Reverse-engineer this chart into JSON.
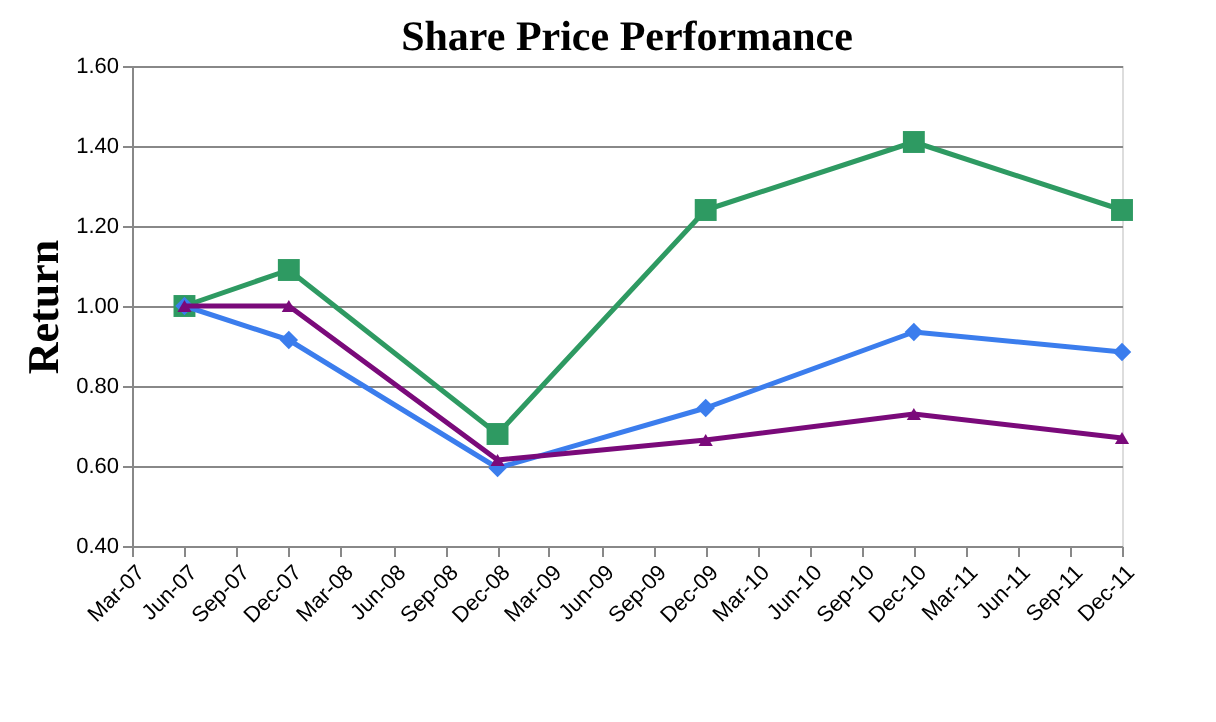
{
  "chart_data": {
    "type": "line",
    "title": "Share Price Performance",
    "ylabel": "Return",
    "x": [
      "2007-06",
      "2007-12",
      "2008-12",
      "2009-12",
      "2010-12",
      "2011-12"
    ],
    "series": [
      {
        "color": "#2e9a62",
        "marker": "square",
        "values": [
          1.0,
          1.09,
          0.68,
          1.24,
          1.41,
          1.24
        ]
      },
      {
        "color": "#3b7ded",
        "marker": "diamond",
        "values": [
          1.0,
          0.915,
          0.595,
          0.745,
          0.935,
          0.885
        ]
      },
      {
        "color": "#7a0a7a",
        "marker": "triangle",
        "values": [
          1.0,
          1.0,
          0.615,
          0.665,
          0.73,
          0.67
        ]
      }
    ],
    "xlim": [
      "2007-03",
      "2011-12"
    ],
    "xticks": [
      {
        "value": "2007-03",
        "label": "Mar-07"
      },
      {
        "value": "2007-06",
        "label": "Jun-07"
      },
      {
        "value": "2007-09",
        "label": "Sep-07"
      },
      {
        "value": "2007-12",
        "label": "Dec-07"
      },
      {
        "value": "2008-03",
        "label": "Mar-08"
      },
      {
        "value": "2008-06",
        "label": "Jun-08"
      },
      {
        "value": "2008-09",
        "label": "Sep-08"
      },
      {
        "value": "2008-12",
        "label": "Dec-08"
      },
      {
        "value": "2009-03",
        "label": "Mar-09"
      },
      {
        "value": "2009-06",
        "label": "Jun-09"
      },
      {
        "value": "2009-09",
        "label": "Sep-09"
      },
      {
        "value": "2009-12",
        "label": "Dec-09"
      },
      {
        "value": "2010-03",
        "label": "Mar-10"
      },
      {
        "value": "2010-06",
        "label": "Jun-10"
      },
      {
        "value": "2010-09",
        "label": "Sep-10"
      },
      {
        "value": "2010-12",
        "label": "Dec-10"
      },
      {
        "value": "2011-03",
        "label": "Mar-11"
      },
      {
        "value": "2011-06",
        "label": "Jun-11"
      },
      {
        "value": "2011-09",
        "label": "Sep-11"
      },
      {
        "value": "2011-12",
        "label": "Dec-11"
      }
    ],
    "ylim": [
      0.4,
      1.6
    ],
    "yticks": [
      {
        "value": 0.4,
        "label": "0.40"
      },
      {
        "value": 0.6,
        "label": "0.60"
      },
      {
        "value": 0.8,
        "label": "0.80"
      },
      {
        "value": 1.0,
        "label": "1.00"
      },
      {
        "value": 1.2,
        "label": "1.20"
      },
      {
        "value": 1.4,
        "label": "1.40"
      },
      {
        "value": 1.6,
        "label": "1.60"
      }
    ],
    "grid": "y",
    "legend": false
  }
}
